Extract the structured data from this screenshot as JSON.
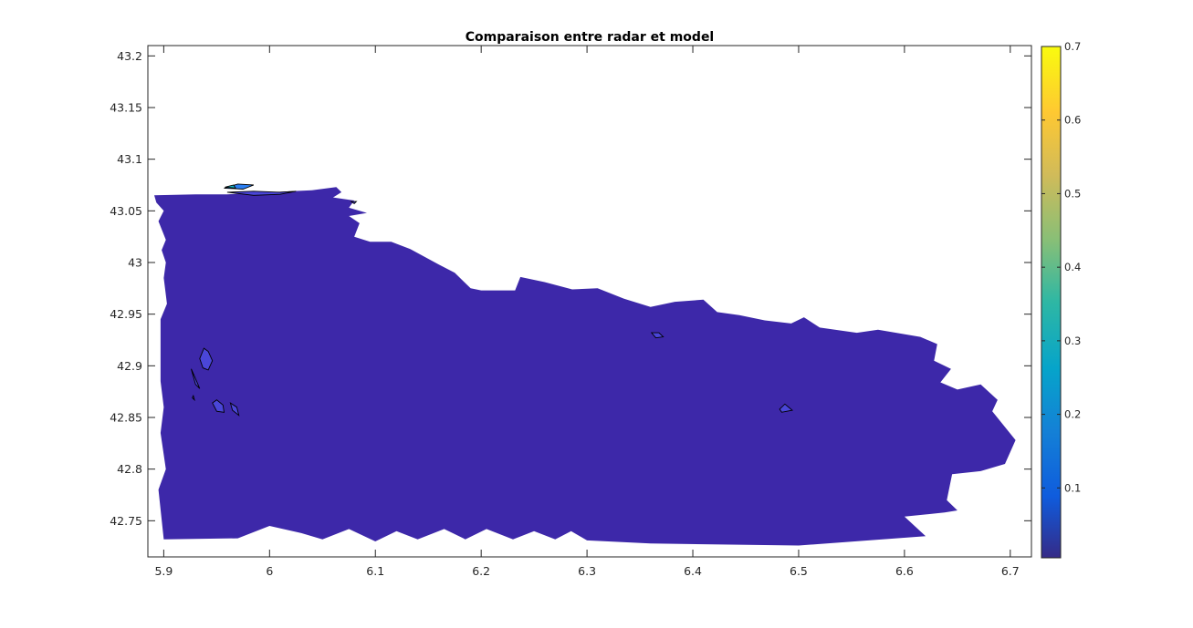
{
  "chart_data": {
    "type": "heatmap",
    "subtype": "filled-contour-map",
    "title": "Comparaison entre radar et model",
    "xlabel": "",
    "ylabel": "",
    "xlim": [
      5.885,
      6.72
    ],
    "ylim": [
      42.715,
      43.21
    ],
    "xticks": [
      5.9,
      6,
      6.1,
      6.2,
      6.3,
      6.4,
      6.5,
      6.6,
      6.7
    ],
    "xtick_labels": [
      "5.9",
      "6",
      "6.1",
      "6.2",
      "6.3",
      "6.4",
      "6.5",
      "6.6",
      "6.7"
    ],
    "yticks": [
      42.75,
      42.8,
      42.85,
      42.9,
      42.95,
      43,
      43.05,
      43.1,
      43.15,
      43.2
    ],
    "ytick_labels": [
      "42.75",
      "42.8",
      "42.85",
      "42.9",
      "42.95",
      "43",
      "43.05",
      "43.1",
      "43.15",
      "43.2"
    ],
    "grid": false,
    "colormap": "parula",
    "colorbar": {
      "location": "right",
      "clim": [
        0.005,
        0.7
      ],
      "ticks": [
        0.1,
        0.2,
        0.3,
        0.4,
        0.5,
        0.6,
        0.7
      ],
      "tick_labels": [
        "0.1",
        "0.2",
        "0.3",
        "0.4",
        "0.5",
        "0.6",
        "0.7"
      ]
    },
    "region": {
      "level": 0.01,
      "color": "#3d28a9",
      "boundary": [
        [
          5.891,
          43.065
        ],
        [
          5.93,
          43.066
        ],
        [
          5.96,
          43.066
        ],
        [
          6.0,
          43.068
        ],
        [
          6.04,
          43.07
        ],
        [
          6.063,
          43.073
        ],
        [
          6.068,
          43.068
        ],
        [
          6.06,
          43.063
        ],
        [
          6.08,
          43.06
        ],
        [
          6.075,
          43.053
        ],
        [
          6.092,
          43.048
        ],
        [
          6.075,
          43.045
        ],
        [
          6.085,
          43.038
        ],
        [
          6.08,
          43.025
        ],
        [
          6.095,
          43.02
        ],
        [
          6.115,
          43.02
        ],
        [
          6.133,
          43.013
        ],
        [
          6.16,
          42.998
        ],
        [
          6.175,
          42.99
        ],
        [
          6.19,
          42.975
        ],
        [
          6.2,
          42.973
        ],
        [
          6.232,
          42.973
        ],
        [
          6.237,
          42.986
        ],
        [
          6.26,
          42.981
        ],
        [
          6.286,
          42.974
        ],
        [
          6.31,
          42.975
        ],
        [
          6.335,
          42.965
        ],
        [
          6.36,
          42.957
        ],
        [
          6.383,
          42.962
        ],
        [
          6.41,
          42.964
        ],
        [
          6.423,
          42.952
        ],
        [
          6.444,
          42.949
        ],
        [
          6.468,
          42.944
        ],
        [
          6.493,
          42.941
        ],
        [
          6.505,
          42.947
        ],
        [
          6.52,
          42.937
        ],
        [
          6.555,
          42.932
        ],
        [
          6.575,
          42.935
        ],
        [
          6.615,
          42.928
        ],
        [
          6.631,
          42.921
        ],
        [
          6.628,
          42.905
        ],
        [
          6.644,
          42.897
        ],
        [
          6.634,
          42.884
        ],
        [
          6.65,
          42.877
        ],
        [
          6.672,
          42.882
        ],
        [
          6.688,
          42.867
        ],
        [
          6.683,
          42.856
        ],
        [
          6.705,
          42.828
        ],
        [
          6.695,
          42.805
        ],
        [
          6.672,
          42.798
        ],
        [
          6.645,
          42.795
        ],
        [
          6.64,
          42.77
        ],
        [
          6.65,
          42.76
        ],
        [
          6.638,
          42.758
        ],
        [
          6.6,
          42.754
        ],
        [
          6.62,
          42.735
        ],
        [
          6.5,
          42.726
        ],
        [
          6.36,
          42.728
        ],
        [
          6.3,
          42.731
        ],
        [
          6.285,
          42.74
        ],
        [
          6.27,
          42.732
        ],
        [
          6.25,
          42.74
        ],
        [
          6.23,
          42.732
        ],
        [
          6.205,
          42.742
        ],
        [
          6.185,
          42.732
        ],
        [
          6.165,
          42.742
        ],
        [
          6.14,
          42.732
        ],
        [
          6.12,
          42.74
        ],
        [
          6.1,
          42.73
        ],
        [
          6.075,
          42.742
        ],
        [
          6.05,
          42.732
        ],
        [
          6.03,
          42.738
        ],
        [
          6.0,
          42.745
        ],
        [
          5.97,
          42.733
        ],
        [
          5.9,
          42.732
        ],
        [
          5.895,
          42.78
        ],
        [
          5.902,
          42.8
        ],
        [
          5.897,
          42.835
        ],
        [
          5.9,
          42.86
        ],
        [
          5.897,
          42.885
        ],
        [
          5.897,
          42.945
        ],
        [
          5.903,
          42.96
        ],
        [
          5.9,
          42.985
        ],
        [
          5.902,
          43.0
        ],
        [
          5.898,
          43.012
        ],
        [
          5.902,
          43.022
        ],
        [
          5.895,
          43.04
        ],
        [
          5.9,
          43.05
        ],
        [
          5.893,
          43.058
        ]
      ]
    },
    "contour_patches": [
      {
        "level": 0.1,
        "color": "#4a46d8",
        "points": [
          [
            5.934,
            42.907
          ],
          [
            5.938,
            42.917
          ],
          [
            5.942,
            42.914
          ],
          [
            5.946,
            42.905
          ],
          [
            5.942,
            42.896
          ],
          [
            5.937,
            42.898
          ]
        ]
      },
      {
        "level": 0.1,
        "color": "#4a46d8",
        "points": [
          [
            5.926,
            42.897
          ],
          [
            5.929,
            42.89
          ],
          [
            5.934,
            42.878
          ],
          [
            5.93,
            42.882
          ]
        ]
      },
      {
        "level": 0.1,
        "color": "#4a46d8",
        "points": [
          [
            5.946,
            42.864
          ],
          [
            5.95,
            42.856
          ],
          [
            5.957,
            42.855
          ],
          [
            5.956,
            42.862
          ],
          [
            5.95,
            42.867
          ]
        ]
      },
      {
        "level": 0.1,
        "color": "#4a46d8",
        "points": [
          [
            5.963,
            42.864
          ],
          [
            5.969,
            42.86
          ],
          [
            5.971,
            42.852
          ],
          [
            5.965,
            42.857
          ]
        ]
      },
      {
        "level": 0.1,
        "color": "#4a46d8",
        "points": [
          [
            5.927,
            42.869
          ],
          [
            5.929,
            42.867
          ],
          [
            5.928,
            42.871
          ]
        ]
      },
      {
        "level": 0.1,
        "color": "#4a46d8",
        "points": [
          [
            6.361,
            42.932
          ],
          [
            6.368,
            42.932
          ],
          [
            6.372,
            42.928
          ],
          [
            6.365,
            42.927
          ]
        ]
      },
      {
        "level": 0.1,
        "color": "#4a46d8",
        "points": [
          [
            6.482,
            42.858
          ],
          [
            6.487,
            42.863
          ],
          [
            6.494,
            42.857
          ],
          [
            6.484,
            42.855
          ]
        ]
      },
      {
        "level": 0.1,
        "color": "#4a46d8",
        "points": [
          [
            5.96,
            43.068
          ],
          [
            5.985,
            43.069
          ],
          [
            6.01,
            43.068
          ],
          [
            6.025,
            43.069
          ],
          [
            6.01,
            43.066
          ],
          [
            5.985,
            43.065
          ]
        ]
      },
      {
        "level": 0.2,
        "color": "#2b7ff3",
        "points": [
          [
            5.957,
            43.072
          ],
          [
            5.97,
            43.076
          ],
          [
            5.985,
            43.075
          ],
          [
            5.975,
            43.071
          ]
        ]
      },
      {
        "level": 0.3,
        "color": "#17b7c6",
        "points": [
          [
            5.958,
            43.073
          ],
          [
            5.966,
            43.075
          ],
          [
            5.968,
            43.072
          ]
        ]
      },
      {
        "level": 0.1,
        "color": "#4a46d8",
        "points": [
          [
            6.077,
            43.059
          ],
          [
            6.082,
            43.059
          ],
          [
            6.08,
            43.057
          ]
        ]
      }
    ]
  }
}
